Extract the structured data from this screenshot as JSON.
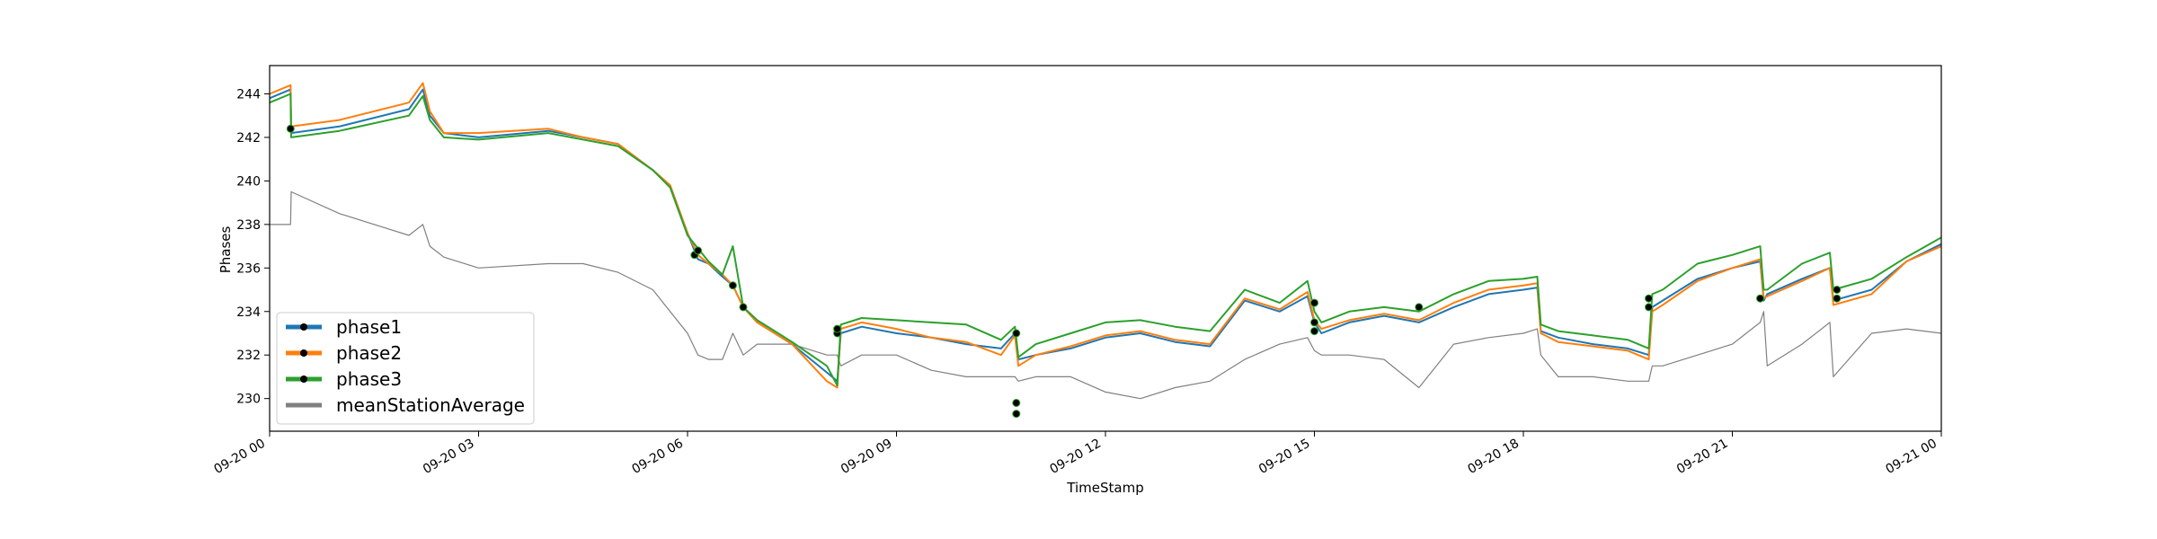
{
  "chart_data": {
    "type": "line",
    "xlabel": "TimeStamp",
    "ylabel": "Phases",
    "xlim": [
      "09-20 00:00",
      "09-21 00:00"
    ],
    "ylim": [
      228.5,
      245.3
    ],
    "x_ticks": [
      "09-20 00",
      "09-20 03",
      "09-20 06",
      "09-20 09",
      "09-20 12",
      "09-20 15",
      "09-20 18",
      "09-20 21",
      "09-21 00"
    ],
    "y_ticks": [
      230,
      232,
      234,
      236,
      238,
      240,
      242,
      244
    ],
    "legend_position": "lower-left",
    "grid": false,
    "x_hours": [
      0,
      0.3,
      0.31,
      1,
      2,
      2.2,
      2.3,
      2.5,
      3,
      4,
      4.5,
      5,
      5.5,
      5.75,
      6,
      6.15,
      6.3,
      6.5,
      6.65,
      6.8,
      7,
      7.5,
      8,
      8.15,
      8.2,
      8.5,
      9,
      9.5,
      10,
      10.5,
      10.7,
      10.75,
      11,
      11.5,
      12,
      12.5,
      13,
      13.5,
      14,
      14.5,
      14.9,
      15,
      15.1,
      15.5,
      16,
      16.5,
      17,
      17.5,
      18,
      18.2,
      18.25,
      18.5,
      19,
      19.5,
      19.8,
      19.85,
      20,
      20.5,
      21,
      21.4,
      21.45,
      21.5,
      22,
      22.4,
      22.45,
      23,
      23.5,
      24
    ],
    "series": [
      {
        "name": "phase1",
        "color": "#1f77b4",
        "y": [
          243.8,
          244.2,
          242.2,
          242.5,
          243.3,
          244.2,
          243.0,
          242.2,
          242.0,
          242.3,
          242.0,
          241.7,
          240.5,
          239.8,
          237.6,
          236.4,
          236.2,
          235.6,
          235.2,
          234.2,
          233.5,
          232.5,
          231.2,
          230.8,
          233.0,
          233.3,
          233.0,
          232.8,
          232.5,
          232.3,
          233.0,
          231.8,
          232.0,
          232.3,
          232.8,
          233.0,
          232.6,
          232.4,
          234.5,
          234.0,
          234.7,
          233.5,
          233.0,
          233.5,
          233.8,
          233.5,
          234.2,
          234.8,
          235.0,
          235.1,
          233.1,
          232.8,
          232.5,
          232.3,
          232.0,
          234.2,
          234.5,
          235.5,
          236.0,
          236.3,
          234.5,
          234.8,
          235.5,
          236.0,
          234.5,
          235.0,
          236.3,
          237.1
        ]
      },
      {
        "name": "phase2",
        "color": "#ff7f0e",
        "y": [
          244.0,
          244.4,
          242.5,
          242.8,
          243.6,
          244.5,
          243.2,
          242.2,
          242.2,
          242.4,
          242.0,
          241.7,
          240.5,
          239.8,
          237.6,
          236.6,
          236.2,
          235.7,
          235.2,
          234.2,
          233.5,
          232.5,
          230.8,
          230.5,
          233.2,
          233.5,
          233.2,
          232.8,
          232.6,
          232.0,
          232.9,
          231.5,
          232.0,
          232.4,
          232.9,
          233.1,
          232.7,
          232.5,
          234.6,
          234.1,
          234.9,
          233.6,
          233.2,
          233.6,
          233.9,
          233.6,
          234.4,
          235.0,
          235.2,
          235.3,
          233.0,
          232.6,
          232.4,
          232.2,
          231.8,
          234.0,
          234.3,
          235.4,
          236.0,
          236.4,
          234.6,
          234.7,
          235.4,
          236.0,
          234.3,
          234.8,
          236.3,
          237.0
        ]
      },
      {
        "name": "phase3",
        "color": "#2ca02c",
        "y": [
          243.6,
          244.0,
          242.0,
          242.3,
          243.0,
          243.9,
          242.8,
          242.0,
          241.9,
          242.2,
          241.9,
          241.6,
          240.5,
          239.7,
          237.5,
          236.9,
          236.3,
          235.7,
          237.0,
          234.2,
          233.6,
          232.6,
          231.5,
          230.6,
          233.4,
          233.7,
          233.6,
          233.5,
          233.4,
          232.7,
          233.3,
          231.9,
          232.5,
          233.0,
          233.5,
          233.6,
          233.3,
          233.1,
          235.0,
          234.4,
          235.4,
          234.0,
          233.5,
          234.0,
          234.2,
          234.0,
          234.8,
          235.4,
          235.5,
          235.6,
          233.4,
          233.1,
          232.9,
          232.7,
          232.3,
          234.8,
          235.0,
          236.2,
          236.6,
          237.0,
          235.0,
          235.0,
          236.2,
          236.7,
          235.0,
          235.5,
          236.5,
          237.4
        ]
      },
      {
        "name": "meanStationAverage",
        "color": "#808080",
        "y": [
          238.0,
          238.0,
          239.5,
          238.5,
          237.5,
          238.0,
          237.0,
          236.5,
          236.0,
          236.2,
          236.2,
          235.8,
          235.0,
          234.0,
          233.0,
          232.0,
          231.8,
          231.8,
          233.0,
          232.0,
          232.5,
          232.5,
          232.0,
          232.0,
          231.5,
          232.0,
          232.0,
          231.3,
          231.0,
          231.0,
          231.0,
          230.8,
          231.0,
          231.0,
          230.3,
          230.0,
          230.5,
          230.8,
          231.8,
          232.5,
          232.8,
          232.2,
          232.0,
          232.0,
          231.8,
          230.5,
          232.5,
          232.8,
          233.0,
          233.2,
          232.0,
          231.0,
          231.0,
          230.8,
          230.8,
          231.5,
          231.5,
          232.0,
          232.5,
          233.5,
          234.0,
          231.5,
          232.5,
          233.5,
          231.0,
          233.0,
          233.2,
          233.0
        ]
      }
    ],
    "marker_points": [
      {
        "x": 0.3,
        "y": 242.4
      },
      {
        "x": 6.1,
        "y": 236.6
      },
      {
        "x": 6.15,
        "y": 236.8
      },
      {
        "x": 6.65,
        "y": 235.2
      },
      {
        "x": 6.8,
        "y": 234.2
      },
      {
        "x": 8.15,
        "y": 233.0
      },
      {
        "x": 8.15,
        "y": 233.2
      },
      {
        "x": 10.72,
        "y": 233.0
      },
      {
        "x": 10.72,
        "y": 229.8
      },
      {
        "x": 10.72,
        "y": 229.3
      },
      {
        "x": 15.0,
        "y": 234.4
      },
      {
        "x": 15.0,
        "y": 233.5
      },
      {
        "x": 15.0,
        "y": 233.1
      },
      {
        "x": 16.5,
        "y": 234.2
      },
      {
        "x": 19.8,
        "y": 234.6
      },
      {
        "x": 19.8,
        "y": 234.2
      },
      {
        "x": 21.4,
        "y": 234.6
      },
      {
        "x": 22.5,
        "y": 235.0
      },
      {
        "x": 22.5,
        "y": 234.6
      }
    ]
  }
}
